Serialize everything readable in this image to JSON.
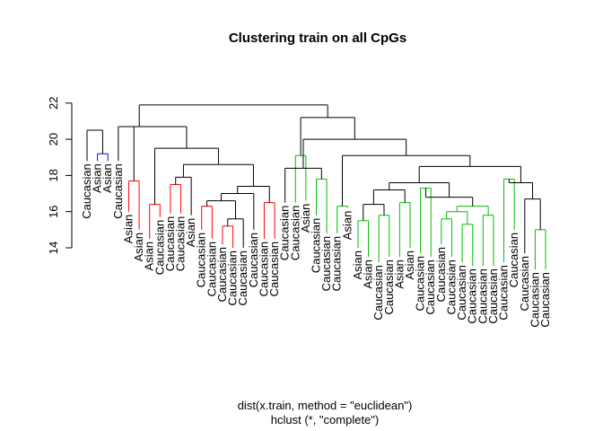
{
  "chart_data": {
    "type": "dendrogram",
    "title": "Clustering train on all CpGs",
    "xlabel": "dist(x.train, method = \"euclidean\")",
    "sub": "hclust (*, \"complete\")",
    "ylim": [
      14,
      23
    ],
    "yticks": [
      14,
      16,
      18,
      20,
      22
    ],
    "ytick_labels": [
      "14",
      "16",
      "18",
      "20",
      "22"
    ],
    "colors": {
      "tree": "#000000",
      "red": "#ff0000",
      "blue": "#0000ff",
      "green": "#00c000"
    },
    "leaves": [
      {
        "label": "Caucasian",
        "top": 18.8
      },
      {
        "label": "Asian",
        "top": 18.8
      },
      {
        "label": "Asian",
        "top": 18.8
      },
      {
        "label": "Caucasian",
        "top": 18.8
      },
      {
        "label": "Asian",
        "top": 16.0
      },
      {
        "label": "Asian",
        "top": 15.0
      },
      {
        "label": "Asian",
        "top": 14.5
      },
      {
        "label": "Caucasian",
        "top": 15.7
      },
      {
        "label": "Caucasian",
        "top": 15.9
      },
      {
        "label": "Caucasian",
        "top": 15.9
      },
      {
        "label": "Asian",
        "top": 15.8
      },
      {
        "label": "Caucasian",
        "top": 15.0
      },
      {
        "label": "Caucasian",
        "top": 14.5
      },
      {
        "label": "Caucasian",
        "top": 14.2
      },
      {
        "label": "Caucasian",
        "top": 14.0
      },
      {
        "label": "Caucasian",
        "top": 14.0
      },
      {
        "label": "Caucasian",
        "top": 15.0
      },
      {
        "label": "Caucasian",
        "top": 14.5
      },
      {
        "label": "Caucasian",
        "top": 14.5
      },
      {
        "label": "Caucasian",
        "top": 16.5
      },
      {
        "label": "Caucasian",
        "top": 16.5
      },
      {
        "label": "Asian",
        "top": 16.6
      },
      {
        "label": "Caucasian",
        "top": 15.8
      },
      {
        "label": "Caucasian",
        "top": 14.8
      },
      {
        "label": "Caucasian",
        "top": 14.8
      },
      {
        "label": "Asian",
        "top": 16.2
      },
      {
        "label": "Asian",
        "top": 14.0
      },
      {
        "label": "Asian",
        "top": 13.5
      },
      {
        "label": "Caucasian",
        "top": 13.2
      },
      {
        "label": "Caucasian",
        "top": 13.5
      },
      {
        "label": "Asian",
        "top": 13.5
      },
      {
        "label": "Asian",
        "top": 14.0
      },
      {
        "label": "Caucasian",
        "top": 13.7
      },
      {
        "label": "Caucasian",
        "top": 13.5
      },
      {
        "label": "Caucasian",
        "top": 14.2
      },
      {
        "label": "Caucasian",
        "top": 13.5
      },
      {
        "label": "Caucasian",
        "top": 13.2
      },
      {
        "label": "Caucasian",
        "top": 13.0
      },
      {
        "label": "Caucasian",
        "top": 13.0
      },
      {
        "label": "Caucasian",
        "top": 13.0
      },
      {
        "label": "Caucasian",
        "top": 13.2
      },
      {
        "label": "Caucasian",
        "top": 15.0
      },
      {
        "label": "Caucasian",
        "top": 13.7
      },
      {
        "label": "Caucasian",
        "top": 12.8
      },
      {
        "label": "Caucasian",
        "top": 12.8
      }
    ],
    "merges": [
      {
        "a": 1,
        "b": 2,
        "h": 19.2,
        "color": "blue"
      },
      {
        "a": 0,
        "b": "m0",
        "h": 20.5,
        "color": "black"
      },
      {
        "a": 4,
        "b": 5,
        "h": 17.7,
        "color": "red"
      },
      {
        "a": 6,
        "b": 7,
        "h": 16.4,
        "color": "red"
      },
      {
        "a": 8,
        "b": 9,
        "h": 17.5,
        "color": "red"
      },
      {
        "a": "m4",
        "b": 10,
        "h": 17.9,
        "color": "black"
      },
      {
        "a": 11,
        "b": 12,
        "h": 16.3,
        "color": "red"
      },
      {
        "a": 13,
        "b": 14,
        "h": 15.2,
        "color": "red"
      },
      {
        "a": "m7",
        "b": 15,
        "h": 15.6,
        "color": "black"
      },
      {
        "a": "m6",
        "b": "m8",
        "h": 16.6,
        "color": "black"
      },
      {
        "a": 16,
        "b": "m9",
        "h": 17.0,
        "color": "black"
      },
      {
        "a": 17,
        "b": 18,
        "h": 16.5,
        "color": "red"
      },
      {
        "a": "m10",
        "b": "m11",
        "h": 17.4,
        "color": "black"
      },
      {
        "a": "m5",
        "b": "m12",
        "h": 18.6,
        "color": "black"
      },
      {
        "a": "m3",
        "b": "m13",
        "h": 19.5,
        "color": "black"
      },
      {
        "a": "m2",
        "b": "m14",
        "h": 20.7,
        "color": "black"
      },
      {
        "a": 3,
        "b": "m15",
        "h": 20.7,
        "color": "black"
      },
      {
        "a": 20,
        "b": 21,
        "h": 19.1,
        "color": "green"
      },
      {
        "a": 22,
        "b": 23,
        "h": 17.8,
        "color": "green"
      },
      {
        "a": 19,
        "b": "m18",
        "h": 18.4,
        "color": "black"
      },
      {
        "a": 24,
        "b": 25,
        "h": 16.3,
        "color": "green"
      },
      {
        "a": 26,
        "b": 27,
        "h": 15.5,
        "color": "green"
      },
      {
        "a": 28,
        "b": 29,
        "h": 15.8,
        "color": "green"
      },
      {
        "a": "m21",
        "b": "m22",
        "h": 16.4,
        "color": "black"
      },
      {
        "a": 30,
        "b": 31,
        "h": 16.5,
        "color": "green"
      },
      {
        "a": "m23",
        "b": "m24",
        "h": 17.2,
        "color": "black"
      },
      {
        "a": 32,
        "b": 33,
        "h": 17.3,
        "color": "green"
      },
      {
        "a": 34,
        "b": 35,
        "h": 15.6,
        "color": "green"
      },
      {
        "a": 36,
        "b": 37,
        "h": 15.3,
        "color": "green"
      },
      {
        "a": "m27",
        "b": "m28",
        "h": 16.0,
        "color": "green"
      },
      {
        "a": 38,
        "b": 39,
        "h": 15.8,
        "color": "green"
      },
      {
        "a": "m29",
        "b": "m30",
        "h": 16.3,
        "color": "green"
      },
      {
        "a": "m26",
        "b": "m31",
        "h": 16.8,
        "color": "black"
      },
      {
        "a": "m25",
        "b": "m32",
        "h": 17.6,
        "color": "black"
      },
      {
        "a": 40,
        "b": 41,
        "h": 17.8,
        "color": "green"
      },
      {
        "a": 43,
        "b": 44,
        "h": 15.0,
        "color": "green"
      },
      {
        "a": 42,
        "b": "m35",
        "h": 16.7,
        "color": "black"
      },
      {
        "a": "m34",
        "b": "m36",
        "h": 17.6,
        "color": "black"
      },
      {
        "a": "m33",
        "b": "m37",
        "h": 18.5,
        "color": "black"
      },
      {
        "a": "m20",
        "b": "m38",
        "h": 19.1,
        "color": "black"
      },
      {
        "a": "m19",
        "b": "m39",
        "h": 20.0,
        "color": "black"
      },
      {
        "a": "m17",
        "b": "m40",
        "h": 21.2,
        "color": "black"
      },
      {
        "a": "m16",
        "b": "m41",
        "h": 21.9,
        "color": "black"
      }
    ]
  }
}
